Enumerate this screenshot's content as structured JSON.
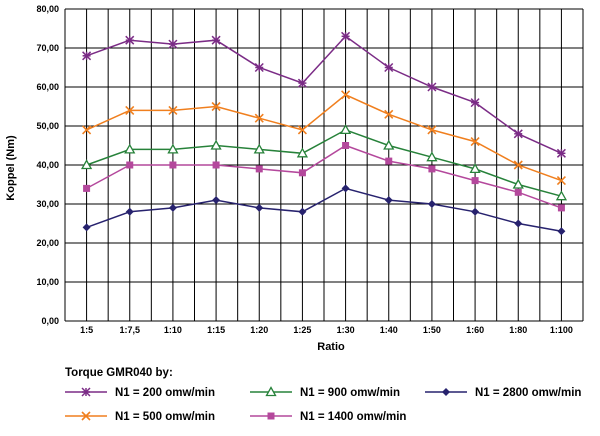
{
  "chart_data": {
    "type": "line",
    "title": "",
    "xlabel": "Ratio",
    "ylabel": "Koppel (Nm)",
    "ylim": [
      0,
      80
    ],
    "y_ticks": [
      "0,00",
      "10,00",
      "20,00",
      "30,00",
      "40,00",
      "50,00",
      "60,00",
      "70,00",
      "80,00"
    ],
    "categories": [
      "1:5",
      "1:7,5",
      "1:10",
      "1:15",
      "1:20",
      "1:25",
      "1:30",
      "1:40",
      "1:50",
      "1:60",
      "1:80",
      "1:100"
    ],
    "grid": true,
    "legend_title": "Torque GMR040 by:",
    "legend_position": "bottom",
    "series": [
      {
        "name": "N1 = 200 omw/min",
        "color": "#7b2c86",
        "marker": "star",
        "values": [
          68,
          72,
          71,
          72,
          65,
          61,
          73,
          65,
          60,
          56,
          48,
          43
        ]
      },
      {
        "name": "N1 = 500 omw/min",
        "color": "#f07f1e",
        "marker": "x",
        "values": [
          49,
          54,
          54,
          55,
          52,
          49,
          58,
          53,
          49,
          46,
          40,
          36
        ]
      },
      {
        "name": "N1 = 900 omw/min",
        "color": "#27823a",
        "marker": "triangle",
        "values": [
          40,
          44,
          44,
          45,
          44,
          43,
          49,
          45,
          42,
          39,
          35,
          32
        ]
      },
      {
        "name": "N1 = 1400 omw/min",
        "color": "#b4489c",
        "marker": "square",
        "values": [
          34,
          40,
          40,
          40,
          39,
          38,
          45,
          41,
          39,
          36,
          33,
          29
        ]
      },
      {
        "name": "N1 = 2800 omw/min",
        "color": "#27226e",
        "marker": "diamond",
        "values": [
          24,
          28,
          29,
          31,
          29,
          28,
          34,
          31,
          30,
          28,
          25,
          23
        ]
      }
    ]
  }
}
